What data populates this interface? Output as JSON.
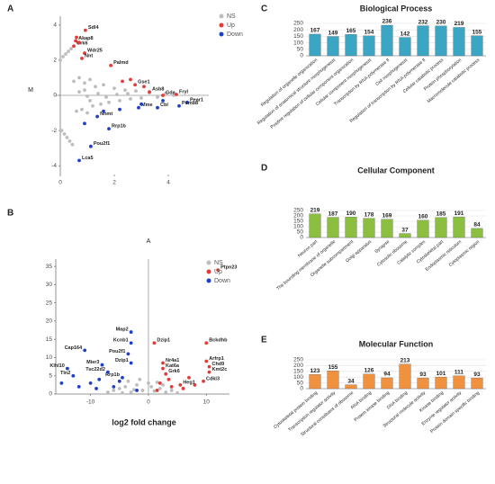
{
  "chart_data": [
    {
      "type": "scatter",
      "label": "A",
      "x_label": "A",
      "y_label": "M",
      "xlim": [
        -0.2,
        5.5
      ],
      "ylim": [
        -4.5,
        4.5
      ],
      "xticks": [
        0,
        2,
        4
      ],
      "yticks": [
        -4,
        -2,
        0,
        2,
        4
      ],
      "series": [
        {
          "name": "NS",
          "color": "#bdbdbd",
          "x": [
            0,
            0.1,
            0.2,
            0.3,
            0.4,
            0.05,
            0.15,
            0.25,
            0.35,
            0.45,
            0.5,
            0.6,
            0.7,
            0.8,
            0.9,
            1.0,
            1.1,
            1.2,
            1.3,
            1.5,
            1.6,
            1.8,
            2.0,
            2.2,
            2.4,
            2.6,
            2.8,
            3.0,
            3.3,
            3.6,
            3.9,
            4.2,
            0.7,
            0.9,
            1.1,
            1.4,
            1.7,
            2.1,
            2.5,
            1.0
          ],
          "values": [
            2.0,
            2.2,
            2.35,
            2.5,
            2.65,
            -2.0,
            -2.2,
            -2.4,
            -2.6,
            -2.8,
            0.8,
            -0.9,
            1.0,
            -0.8,
            0.7,
            -1.0,
            0.9,
            -0.6,
            0.5,
            -0.5,
            0.6,
            -0.4,
            0.4,
            -0.3,
            0.3,
            -0.2,
            0.25,
            -0.15,
            0.15,
            -0.1,
            0.1,
            0,
            0.2,
            0.3,
            -0.3,
            0.1,
            -0.1,
            0.05,
            0.1,
            -0.05
          ]
        },
        {
          "name": "Up",
          "color": "#e53935",
          "x": [
            0.93,
            0.57,
            0.5,
            0.9,
            0.8,
            1.87,
            2.77,
            3.3,
            3.8,
            4.3,
            0.6,
            0.7,
            2.3,
            2.6,
            3.1
          ],
          "values": [
            3.7,
            3.1,
            2.8,
            2.4,
            2.1,
            1.7,
            0.6,
            0.2,
            0,
            0.05,
            3.3,
            3.0,
            0.8,
            0.9,
            0.5
          ],
          "labels": [
            "Sdl4",
            "Akap8",
            "Grk6",
            "Wdr25",
            "Nnt",
            "Palmd",
            "Gse1",
            "Asb8",
            "Gda",
            "Fryl",
            null,
            null,
            null,
            null,
            null
          ]
        },
        {
          "name": "Down",
          "color": "#1e3fc8",
          "x": [
            4.7,
            4.4,
            3.6,
            2.9,
            1.37,
            1.8,
            1.13,
            0.7,
            1.6,
            2.2,
            3.0,
            3.8,
            0.9
          ],
          "values": [
            -0.4,
            -0.6,
            -0.7,
            -0.7,
            -1.2,
            -1.9,
            -2.9,
            -3.7,
            -0.9,
            -0.8,
            -0.5,
            -0.3,
            -1.6
          ],
          "labels": [
            "Pear1",
            "Psmb8",
            "Cbl",
            "Mme",
            "Nnmt",
            "Rrp1b",
            "Pou2f1",
            "Lca5",
            null,
            null,
            null,
            null,
            null
          ]
        }
      ]
    },
    {
      "type": "scatter",
      "label": "B",
      "x_label": "log2 fold change",
      "xlim": [
        -16,
        14
      ],
      "ylim": [
        0,
        37
      ],
      "xticks": [
        -10,
        0,
        10
      ],
      "yticks": [
        0,
        5,
        10,
        15,
        20,
        25,
        30,
        35
      ],
      "series": [
        {
          "name": "NS",
          "color": "#bdbdbd",
          "x": [
            -6,
            -5,
            -4,
            -3,
            -2,
            -1,
            0,
            1,
            2,
            3,
            4,
            5,
            -7,
            -3.5,
            -1.5,
            0.5,
            2.5,
            -4.5,
            -2.5,
            1.5
          ],
          "values": [
            1,
            1.5,
            2,
            0.5,
            2.5,
            1,
            3,
            0.8,
            1.5,
            0.5,
            1,
            0.3,
            0.5,
            3.5,
            4,
            2,
            2.5,
            0.3,
            1.2,
            3.2
          ]
        },
        {
          "name": "Up",
          "color": "#e53935",
          "x": [
            12,
            10,
            10,
            10.5,
            10.5,
            9.5,
            5.5,
            1,
            2.5,
            2.5,
            3,
            2,
            4,
            6,
            8,
            1.5,
            3.5,
            7
          ],
          "values": [
            34,
            14,
            9,
            7.5,
            6,
            3.5,
            2.5,
            14,
            8.5,
            7,
            5.5,
            3,
            2,
            1.5,
            2.5,
            1,
            4,
            4.5
          ],
          "labels": [
            "Ptpn23",
            "Bckdhb",
            "Arfrp1",
            "Chd9",
            "Kmt2c",
            "Cdkl3",
            "Heg1",
            "Dzip1",
            "Nr4a1",
            "Kat6a",
            "Grk6",
            null,
            null,
            null,
            null,
            null,
            null,
            null
          ]
        },
        {
          "name": "Down",
          "color": "#1e3fc8",
          "x": [
            -3,
            -3,
            -3.5,
            -3,
            -4.5,
            -7,
            -8,
            -11,
            -14,
            -13,
            -10,
            -12,
            -9,
            -6,
            -5,
            -2,
            -15,
            -8.5
          ],
          "values": [
            17,
            14,
            11,
            8.5,
            4.5,
            6,
            8,
            12,
            7,
            5,
            3,
            2,
            1.5,
            2,
            3.5,
            1,
            3,
            4
          ],
          "labels": [
            "Map2",
            "Kcnb1",
            "Pou2f1",
            "Dzip1",
            "Rrp1b",
            "Tsc22d2",
            "Mier3",
            "Cap164",
            "Klhl10",
            "Tln2",
            null,
            null,
            null,
            null,
            null,
            null,
            null,
            null
          ]
        }
      ]
    },
    {
      "type": "bar",
      "label": "C",
      "title": "Biological Process",
      "color": "#3aa6c4",
      "grid": true,
      "ylim": [
        0,
        250
      ],
      "yticks": [
        0,
        50,
        100,
        150,
        200,
        250
      ],
      "categories": [
        "Regulation of organelle organization",
        "Regulation of anatomical structure morphogenesis",
        "Positive regulation of cellular component organization",
        "Cellular component morphogenesis",
        "Transcription by RNA polymerase II",
        "Cell morphogenesis",
        "Regulation of transcription by RNA polymerase II",
        "Cellular catabolic process",
        "Protein phosphorylation",
        "Macromolecule catabolic process"
      ],
      "values": [
        167,
        149,
        165,
        154,
        236,
        142,
        232,
        230,
        219,
        155
      ]
    },
    {
      "type": "bar",
      "label": "D",
      "title": "Cellular Component",
      "color": "#8cbf3f",
      "grid": true,
      "ylim": [
        0,
        250
      ],
      "yticks": [
        0,
        50,
        100,
        150,
        200,
        250
      ],
      "categories": [
        "Neuron part",
        "The bounding membrane of organelle",
        "Organelle subcompartment",
        "Golgi apparatus",
        "Synapse",
        "Cytosolic ribosome",
        "Catalytic complex",
        "Cytoskeletal part",
        "Endoplasmic reticulum",
        "Cytoplasmic region"
      ],
      "values": [
        219,
        187,
        190,
        178,
        169,
        37,
        160,
        185,
        191,
        84
      ]
    },
    {
      "type": "bar",
      "label": "E",
      "title": "Molecular Function",
      "color": "#f0913f",
      "grid": true,
      "ylim": [
        0,
        250
      ],
      "yticks": [
        0,
        50,
        100,
        150,
        200,
        250
      ],
      "categories": [
        "Cytoskeletal protein binding",
        "Transcription regulator activity",
        "Structural constituent of ribosome",
        "RNA binding",
        "Protein kinase binding",
        "DNA binding",
        "Structural molecule activity",
        "Kinase binding",
        "Enzyme regulator activity",
        "Protein domain specific binding"
      ],
      "values": [
        123,
        155,
        34,
        126,
        94,
        213,
        93,
        101,
        111,
        93
      ]
    }
  ]
}
